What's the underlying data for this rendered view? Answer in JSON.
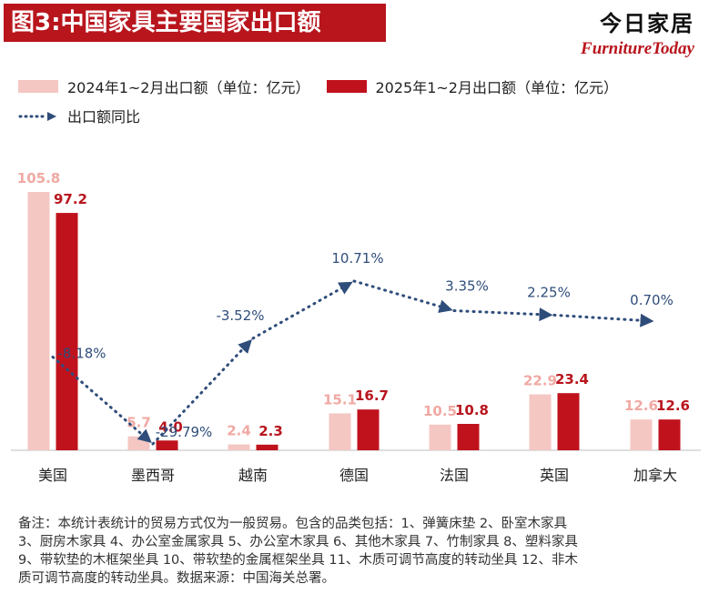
{
  "header": {
    "title": "图3:中国家具主要国家出口额",
    "brand_cn": "今日家居",
    "brand_en": "FurnitureToday"
  },
  "legend": {
    "series_2024": "2024年1~2月出口额（单位：亿元）",
    "series_2025": "2025年1~2月出口额（单位：亿元）",
    "line": "出口额同比"
  },
  "colors": {
    "bar_2024": "#f4c7c3",
    "bar_2025": "#c0121d",
    "label_2024": "#f0a9a3",
    "label_2025": "#b8151d",
    "line": "#2f4d7a"
  },
  "chart_data": {
    "type": "bar",
    "categories": [
      "美国",
      "墨西哥",
      "越南",
      "德国",
      "法国",
      "英国",
      "加拿大"
    ],
    "series": [
      {
        "name": "2024年1~2月出口额（单位：亿元）",
        "values": [
          105.8,
          5.7,
          2.4,
          15.1,
          10.5,
          22.9,
          12.6
        ]
      },
      {
        "name": "2025年1~2月出口额（单位：亿元）",
        "values": [
          97.2,
          4.0,
          2.3,
          16.7,
          10.8,
          23.4,
          12.6
        ]
      }
    ],
    "line_series": {
      "name": "出口额同比",
      "values": [
        -8.18,
        -29.79,
        -3.52,
        10.71,
        3.35,
        2.25,
        0.7
      ],
      "labels": [
        "-8.18%",
        "-29.79%",
        "-3.52%",
        "10.71%",
        "3.35%",
        "2.25%",
        "0.70%"
      ]
    },
    "bar_labels_2024": [
      "105.8",
      "5.7",
      "2.4",
      "15.1",
      "10.5",
      "22.9",
      "12.6"
    ],
    "bar_labels_2025": [
      "97.2",
      "4.0",
      "2.3",
      "16.7",
      "10.8",
      "23.4",
      "12.6"
    ],
    "ylim": [
      0,
      105.8
    ],
    "line_ylim": [
      -29.79,
      10.71
    ],
    "grid": false,
    "legend_position": "top-left"
  },
  "note": "备注：本统计表统计的贸易方式仅为一般贸易。包含的品类包括：1、弹簧床垫 2、卧室木家具 3、厨房木家具 4、办公室金属家具 5、办公室木家具 6、其他木家具 7、竹制家具 8、塑料家具 9、带软垫的木框架坐具 10、带软垫的金属框架坐具 11、木质可调节高度的转动坐具 12、非木质可调节高度的转动坐具。数据来源：中国海关总署。"
}
